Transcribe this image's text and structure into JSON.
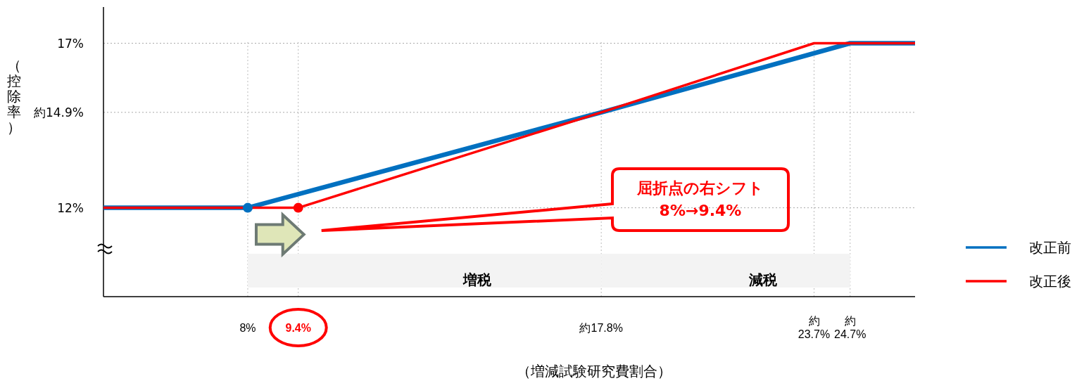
{
  "chart_data": {
    "type": "line",
    "xlabel": "（増減試験研究費割合）",
    "ylabel": "（控除率）",
    "xlim": [
      4,
      26.5
    ],
    "ylim": [
      9.3,
      18.1
    ],
    "xticks": [
      {
        "value": 8,
        "label": "8%"
      },
      {
        "value": 9.4,
        "label": "9.4%"
      },
      {
        "value": 17.8,
        "label": "約17.8%"
      },
      {
        "value": 23.7,
        "label": "約23.7%"
      },
      {
        "value": 24.7,
        "label": "約24.7%"
      }
    ],
    "yticks": [
      {
        "value": 12,
        "label": "12%"
      },
      {
        "value": 14.9,
        "label": "約14.9%"
      },
      {
        "value": 17,
        "label": "17%"
      }
    ],
    "grid": true,
    "legend": "right",
    "line_style": "solid",
    "series": [
      {
        "name": "改正前",
        "color": "#0070c0",
        "x": [
          4,
          8,
          17.8,
          24.7,
          26.5
        ],
        "values": [
          12,
          12,
          14.9,
          17,
          17
        ]
      },
      {
        "name": "改正後",
        "color": "#ff0000",
        "x": [
          4,
          9.4,
          17.8,
          23.7,
          26.5
        ],
        "values": [
          12,
          12,
          14.9,
          17,
          17
        ]
      },
      {
        "type": "scatter",
        "color": "#0070c0",
        "marker": "circle",
        "x": [
          8
        ],
        "values": [
          12
        ]
      },
      {
        "type": "scatter",
        "color": "#ff0000",
        "marker": "circle",
        "x": [
          9.4
        ],
        "values": [
          12
        ]
      }
    ],
    "bands": [
      {
        "axis": "x",
        "from": 8,
        "to": 17.8,
        "label": "増税"
      },
      {
        "axis": "x",
        "from": 17.8,
        "to": 24.7,
        "label": "減税"
      }
    ],
    "annotations": [
      "屈折点の右シフト",
      "8%→9.4%"
    ]
  }
}
